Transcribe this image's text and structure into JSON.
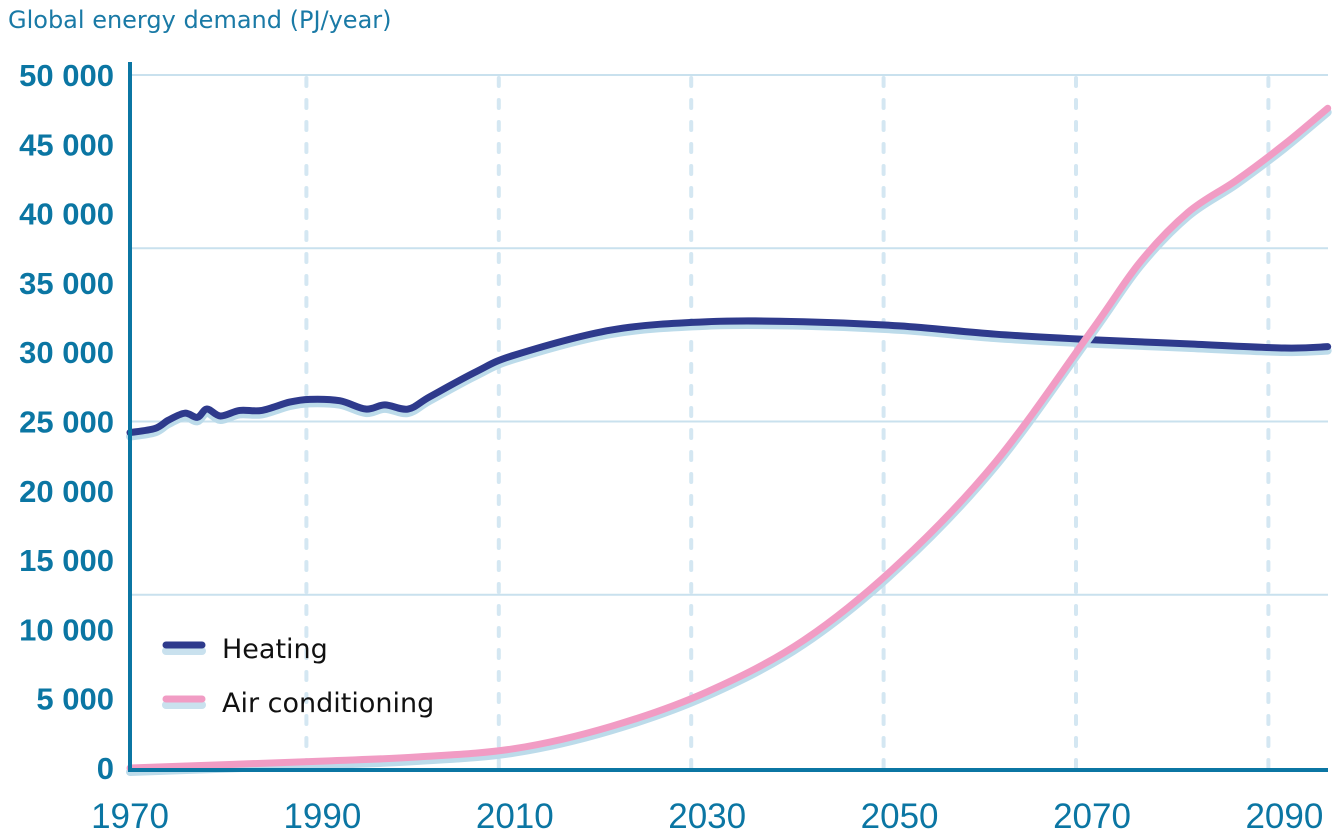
{
  "chart_data": {
    "type": "line",
    "title": "Global energy demand (PJ/year)",
    "xlabel": "",
    "ylabel": "",
    "xlim": [
      1970,
      2094.5
    ],
    "ylim": [
      0,
      50000
    ],
    "x_ticks": [
      1970,
      1990,
      2010,
      2030,
      2050,
      2070,
      2090
    ],
    "x_tick_labels": [
      "1970",
      "1990",
      "2010",
      "2030",
      "2050",
      "2070",
      "2090"
    ],
    "y_ticks": [
      0,
      5000,
      10000,
      15000,
      20000,
      25000,
      30000,
      35000,
      40000,
      45000,
      50000
    ],
    "y_tick_labels": [
      "0",
      "5 000",
      "10 000",
      "15 000",
      "20 000",
      "25 000",
      "30 000",
      "35 000",
      "40 000",
      "45 000",
      "50 000"
    ],
    "grid": {
      "horizontal": true,
      "vertical_dotted": true
    },
    "legend_position": "bottom-left",
    "series": [
      {
        "name": "Heating",
        "color": "#2e3a8c",
        "points": [
          [
            1970,
            24200
          ],
          [
            1972.6,
            24500
          ],
          [
            1974,
            25100
          ],
          [
            1975.7,
            25600
          ],
          [
            1977,
            25300
          ],
          [
            1978,
            25900
          ],
          [
            1979.4,
            25400
          ],
          [
            1981.4,
            25800
          ],
          [
            1983.7,
            25800
          ],
          [
            1986.6,
            26400
          ],
          [
            1988.7,
            26600
          ],
          [
            1991.8,
            26500
          ],
          [
            1994.5,
            25900
          ],
          [
            1996.5,
            26200
          ],
          [
            1998.9,
            25900
          ],
          [
            2001.2,
            26800
          ],
          [
            2006,
            28600
          ],
          [
            2010,
            29800
          ],
          [
            2020,
            31600
          ],
          [
            2030,
            32200
          ],
          [
            2040,
            32200
          ],
          [
            2050,
            31900
          ],
          [
            2060,
            31300
          ],
          [
            2070,
            30900
          ],
          [
            2080,
            30600
          ],
          [
            2090,
            30300
          ],
          [
            2094.5,
            30400
          ]
        ]
      },
      {
        "name": "Air conditioning",
        "color": "#f19cc4",
        "points": [
          [
            1970,
            0
          ],
          [
            1990,
            500
          ],
          [
            2000,
            800
          ],
          [
            2010,
            1400
          ],
          [
            2020,
            3000
          ],
          [
            2030,
            5500
          ],
          [
            2040,
            9200
          ],
          [
            2050,
            14800
          ],
          [
            2060,
            22100
          ],
          [
            2070,
            31600
          ],
          [
            2075,
            36500
          ],
          [
            2080,
            40100
          ],
          [
            2085,
            42400
          ],
          [
            2090,
            45000
          ],
          [
            2094.5,
            47600
          ]
        ]
      }
    ],
    "colors": {
      "axis": "#0b76a3",
      "grid": "#c9e1ee",
      "shadow": "#bcdbea"
    }
  }
}
